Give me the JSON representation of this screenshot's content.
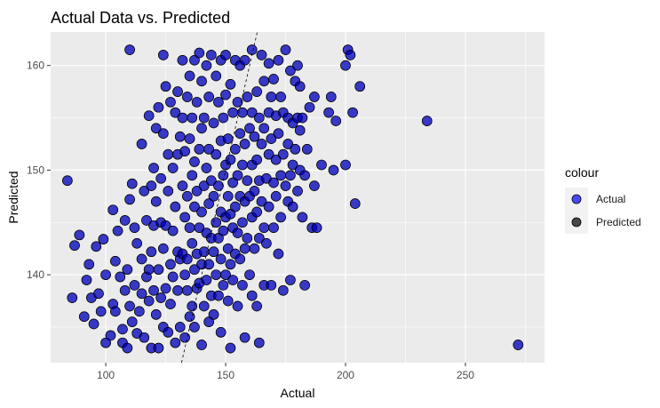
{
  "chart_data": {
    "type": "scatter",
    "title": "Actual Data vs. Predicted",
    "xlabel": "Actual",
    "ylabel": "Predicted",
    "xlim": [
      77,
      283
    ],
    "ylim": [
      131.6,
      163.2
    ],
    "x_ticks": [
      100,
      150,
      200,
      250
    ],
    "y_ticks": [
      140,
      150,
      160
    ],
    "grid": true,
    "legend": {
      "title": "colour",
      "position": "right",
      "entries": [
        {
          "label": "Actual",
          "color": "#0000ff"
        },
        {
          "label": "Predicted",
          "color": "#000000"
        }
      ]
    },
    "reference_line": {
      "type": "y=x",
      "style": "dashed",
      "color": "#000000"
    },
    "series": [
      {
        "name": "Actual",
        "color": "#0000ff",
        "points": [
          [
            84,
            149
          ],
          [
            86,
            137.8
          ],
          [
            87,
            142.8
          ],
          [
            89,
            143.8
          ],
          [
            91,
            136
          ],
          [
            92,
            139.5
          ],
          [
            93,
            141
          ],
          [
            94,
            137.8
          ],
          [
            95,
            135.3
          ],
          [
            96,
            142.7
          ],
          [
            97,
            138.2
          ],
          [
            98,
            136.5
          ],
          [
            99,
            143.4
          ],
          [
            100,
            140
          ],
          [
            100,
            133.5
          ],
          [
            102,
            134.2
          ],
          [
            103,
            146.2
          ],
          [
            103,
            137.2
          ],
          [
            104,
            141.3
          ],
          [
            104,
            136.5
          ],
          [
            105,
            144.2
          ],
          [
            106,
            139.8
          ],
          [
            107,
            134.8
          ],
          [
            107,
            133.5
          ],
          [
            108,
            145.2
          ],
          [
            108,
            138.5
          ],
          [
            109,
            140.5
          ],
          [
            109,
            133
          ],
          [
            110,
            161.5
          ],
          [
            110,
            147.2
          ],
          [
            110,
            137
          ],
          [
            111,
            148.7
          ],
          [
            111,
            135.5
          ],
          [
            112,
            144.5
          ],
          [
            112,
            139
          ],
          [
            113,
            143
          ],
          [
            113,
            134.4
          ],
          [
            114,
            136.5
          ],
          [
            115,
            152.5
          ],
          [
            115,
            141.5
          ],
          [
            115,
            138.2
          ],
          [
            116,
            148
          ],
          [
            116,
            134
          ],
          [
            117,
            145.2
          ],
          [
            117,
            139.8
          ],
          [
            118,
            155.2
          ],
          [
            118,
            140.5
          ],
          [
            118,
            137.5
          ],
          [
            119,
            148.5
          ],
          [
            119,
            142.2
          ],
          [
            119,
            133
          ],
          [
            120,
            150.2
          ],
          [
            120,
            144.7
          ],
          [
            120,
            138.5
          ],
          [
            121,
            154
          ],
          [
            121,
            147
          ],
          [
            121,
            136.2
          ],
          [
            122,
            156
          ],
          [
            122,
            140.5
          ],
          [
            122,
            133
          ],
          [
            123,
            149.2
          ],
          [
            123,
            145
          ],
          [
            123,
            137.8
          ],
          [
            124,
            161
          ],
          [
            124,
            153.5
          ],
          [
            124,
            142.5
          ],
          [
            124,
            135
          ],
          [
            125,
            158
          ],
          [
            125,
            144.7
          ],
          [
            125,
            138.7
          ],
          [
            126,
            151.5
          ],
          [
            126,
            148
          ],
          [
            126,
            134.5
          ],
          [
            127,
            156.5
          ],
          [
            127,
            141
          ],
          [
            127,
            137.2
          ],
          [
            128,
            150.2
          ],
          [
            128,
            144.2
          ],
          [
            128,
            139.8
          ],
          [
            129,
            155.5
          ],
          [
            129,
            146.5
          ],
          [
            129,
            133.5
          ],
          [
            130,
            157.5
          ],
          [
            130,
            151.5
          ],
          [
            130,
            142.2
          ],
          [
            130,
            138.5
          ],
          [
            131,
            153.2
          ],
          [
            131,
            141.5
          ],
          [
            131,
            135
          ],
          [
            132,
            160.5
          ],
          [
            132,
            155
          ],
          [
            132,
            148.5
          ],
          [
            132,
            142
          ],
          [
            133,
            151.8
          ],
          [
            133,
            145.5
          ],
          [
            133,
            140
          ],
          [
            133,
            134
          ],
          [
            134,
            157
          ],
          [
            134,
            147.5
          ],
          [
            134,
            141.5
          ],
          [
            134,
            138.5
          ],
          [
            135,
            159
          ],
          [
            135,
            153
          ],
          [
            135,
            144.5
          ],
          [
            135,
            136
          ],
          [
            136,
            155
          ],
          [
            136,
            149.5
          ],
          [
            136,
            143
          ],
          [
            136,
            137
          ],
          [
            137,
            160.5
          ],
          [
            137,
            150.8
          ],
          [
            137,
            146.5
          ],
          [
            137,
            140.5
          ],
          [
            137,
            135
          ],
          [
            138,
            156.5
          ],
          [
            138,
            148
          ],
          [
            138,
            142
          ],
          [
            138,
            138.7
          ],
          [
            139,
            161.2
          ],
          [
            139,
            152
          ],
          [
            139,
            144.5
          ],
          [
            139,
            139.2
          ],
          [
            140,
            158.5
          ],
          [
            140,
            154
          ],
          [
            140,
            146
          ],
          [
            140,
            141
          ],
          [
            140,
            133.3
          ],
          [
            141,
            155
          ],
          [
            141,
            148.5
          ],
          [
            141,
            142.2
          ],
          [
            141,
            137
          ],
          [
            142,
            160
          ],
          [
            142,
            150.2
          ],
          [
            142,
            144
          ],
          [
            142,
            139.5
          ],
          [
            143,
            157
          ],
          [
            143,
            152
          ],
          [
            143,
            146.8
          ],
          [
            143,
            141
          ],
          [
            143,
            135.5
          ],
          [
            144,
            161
          ],
          [
            144,
            149
          ],
          [
            144,
            143.5
          ],
          [
            144,
            138
          ],
          [
            145,
            154.5
          ],
          [
            145,
            147.5
          ],
          [
            145,
            142.2
          ],
          [
            145,
            136.2
          ],
          [
            146,
            159
          ],
          [
            146,
            151.5
          ],
          [
            146,
            145
          ],
          [
            146,
            140
          ],
          [
            147,
            156.5
          ],
          [
            147,
            148.5
          ],
          [
            147,
            143.5
          ],
          [
            147,
            138
          ],
          [
            148,
            160.5
          ],
          [
            148,
            152.8
          ],
          [
            148,
            146
          ],
          [
            148,
            141.5
          ],
          [
            148,
            134.5
          ],
          [
            149,
            155
          ],
          [
            149,
            149.5
          ],
          [
            149,
            144.2
          ],
          [
            149,
            139
          ],
          [
            150,
            161
          ],
          [
            150,
            157.2
          ],
          [
            150,
            150.5
          ],
          [
            150,
            145.5
          ],
          [
            150,
            140
          ],
          [
            151,
            153
          ],
          [
            151,
            147.5
          ],
          [
            151,
            142.5
          ],
          [
            151,
            137.5
          ],
          [
            152,
            158.2
          ],
          [
            152,
            151
          ],
          [
            152,
            145.8
          ],
          [
            152,
            141
          ],
          [
            152,
            133
          ],
          [
            153,
            155.5
          ],
          [
            153,
            148.8
          ],
          [
            153,
            144.5
          ],
          [
            153,
            139.5
          ],
          [
            154,
            160.5
          ],
          [
            154,
            152
          ],
          [
            154,
            146.5
          ],
          [
            154,
            142
          ],
          [
            155,
            156.5
          ],
          [
            155,
            149.5
          ],
          [
            155,
            144
          ],
          [
            155,
            137
          ],
          [
            156,
            160
          ],
          [
            156,
            153.5
          ],
          [
            156,
            147.5
          ],
          [
            156,
            141.5
          ],
          [
            157,
            155.5
          ],
          [
            157,
            150.5
          ],
          [
            157,
            145
          ],
          [
            157,
            139
          ],
          [
            158,
            160.5
          ],
          [
            158,
            152.5
          ],
          [
            158,
            147
          ],
          [
            158,
            142.5
          ],
          [
            158,
            134
          ],
          [
            159,
            157
          ],
          [
            159,
            149
          ],
          [
            159,
            143.5
          ],
          [
            160,
            154
          ],
          [
            160,
            147.5
          ],
          [
            160,
            140
          ],
          [
            161,
            161.5
          ],
          [
            161,
            155.5
          ],
          [
            161,
            150.5
          ],
          [
            161,
            145.5
          ],
          [
            161,
            138
          ],
          [
            162,
            153.2
          ],
          [
            162,
            148
          ],
          [
            162,
            142.5
          ],
          [
            163,
            157.5
          ],
          [
            163,
            151
          ],
          [
            163,
            146
          ],
          [
            163,
            137
          ],
          [
            164,
            155
          ],
          [
            164,
            149
          ],
          [
            164,
            143.5
          ],
          [
            164,
            133.5
          ],
          [
            165,
            161
          ],
          [
            165,
            152.5
          ],
          [
            165,
            147
          ],
          [
            166,
            158.5
          ],
          [
            166,
            154
          ],
          [
            166,
            144.5
          ],
          [
            166,
            139
          ],
          [
            167,
            149.2
          ],
          [
            167,
            143
          ],
          [
            168,
            160.2
          ],
          [
            168,
            155.5
          ],
          [
            168,
            151.5
          ],
          [
            168,
            146.5
          ],
          [
            169,
            157
          ],
          [
            169,
            153
          ],
          [
            169,
            139
          ],
          [
            170,
            158.7
          ],
          [
            170,
            148.8
          ],
          [
            170,
            144.5
          ],
          [
            171,
            155.2
          ],
          [
            171,
            151
          ],
          [
            171,
            147.5
          ],
          [
            172,
            160.5
          ],
          [
            172,
            153.5
          ],
          [
            172,
            142
          ],
          [
            173,
            157
          ],
          [
            173,
            149.5
          ],
          [
            173,
            145.5
          ],
          [
            174,
            155.5
          ],
          [
            174,
            151.5
          ],
          [
            174,
            138.5
          ],
          [
            175,
            161.5
          ],
          [
            175,
            148.5
          ],
          [
            176,
            155
          ],
          [
            176,
            152.5
          ],
          [
            176,
            147
          ],
          [
            177,
            159.5
          ],
          [
            177,
            149.5
          ],
          [
            177,
            139.5
          ],
          [
            178,
            154.5
          ],
          [
            178,
            150.5
          ],
          [
            178,
            146.5
          ],
          [
            179,
            158.5
          ],
          [
            179,
            152
          ],
          [
            180,
            160
          ],
          [
            180,
            155
          ],
          [
            180,
            148
          ],
          [
            181,
            158
          ],
          [
            181,
            153.8
          ],
          [
            181,
            150
          ],
          [
            182,
            155
          ],
          [
            182,
            145.5
          ],
          [
            183,
            149.5
          ],
          [
            183,
            139
          ],
          [
            184,
            152
          ],
          [
            185,
            156
          ],
          [
            186,
            144.5
          ],
          [
            187,
            157
          ],
          [
            187,
            148.5
          ],
          [
            188,
            144.5
          ],
          [
            190,
            150.5
          ],
          [
            193,
            155.5
          ],
          [
            194,
            157
          ],
          [
            195,
            150
          ],
          [
            196,
            154.7
          ],
          [
            200,
            160
          ],
          [
            200,
            150.5
          ],
          [
            201,
            161.5
          ],
          [
            202,
            161
          ],
          [
            203,
            155.5
          ],
          [
            204,
            146.8
          ],
          [
            206,
            158
          ],
          [
            234,
            154.7
          ],
          [
            272,
            133.3
          ]
        ]
      }
    ]
  }
}
